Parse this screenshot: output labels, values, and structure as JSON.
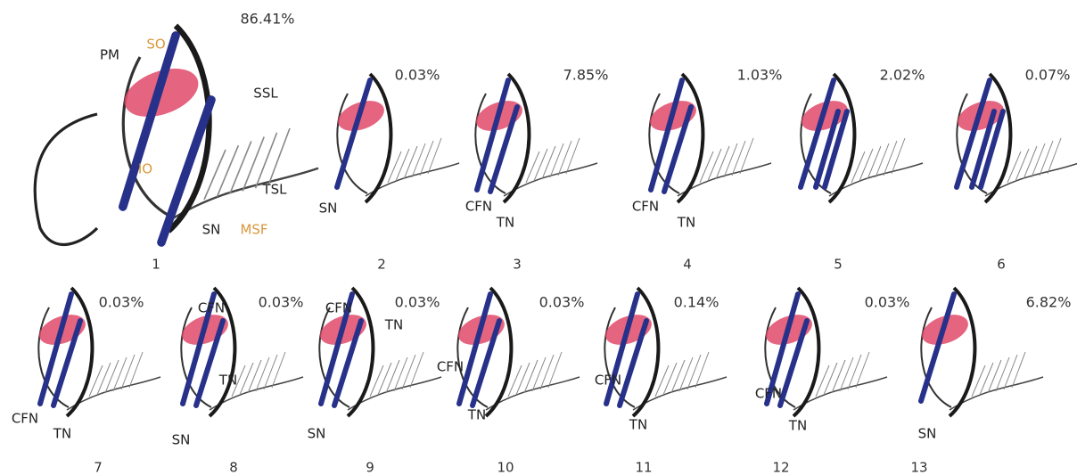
{
  "panels": [
    {
      "number": "1",
      "percent": "86.41%",
      "labels": [
        "PM",
        "SO",
        "SSL",
        "IO",
        "TSL",
        "SN",
        "MSF"
      ]
    },
    {
      "number": "2",
      "percent": "0.03%",
      "labels": [
        "SN"
      ]
    },
    {
      "number": "3",
      "percent": "7.85%",
      "labels": [
        "CFN",
        "TN"
      ]
    },
    {
      "number": "4",
      "percent": "1.03%",
      "labels": [
        "CFN",
        "TN"
      ]
    },
    {
      "number": "5",
      "percent": "2.02%",
      "labels": []
    },
    {
      "number": "6",
      "percent": "0.07%",
      "labels": []
    },
    {
      "number": "7",
      "percent": "0.03%",
      "labels": [
        "CFN",
        "TN"
      ]
    },
    {
      "number": "8",
      "percent": "0.03%",
      "labels": [
        "CFN",
        "TN",
        "SN"
      ]
    },
    {
      "number": "9",
      "percent": "0.03%",
      "labels": [
        "CFN",
        "TN",
        "SN"
      ]
    },
    {
      "number": "10",
      "percent": "0.03%",
      "labels": [
        "CFN",
        "TN"
      ]
    },
    {
      "number": "11",
      "percent": "0.14%",
      "labels": [
        "CFN",
        "TN"
      ]
    },
    {
      "number": "12",
      "percent": "0.03%",
      "labels": [
        "CFN",
        "TN"
      ]
    },
    {
      "number": "13",
      "percent": "6.82%",
      "labels": [
        "SN"
      ]
    }
  ]
}
